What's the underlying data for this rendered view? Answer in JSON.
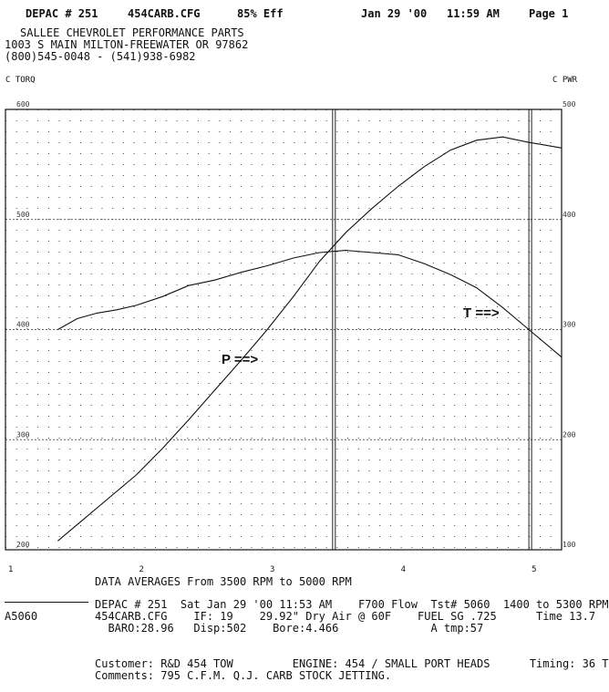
{
  "header": {
    "depac": "DEPAC # 251",
    "config": "454CARB.CFG",
    "eff": "85% Eff",
    "date": "Jan 29 '00",
    "time": "11:59 AM",
    "page": "Page 1"
  },
  "shop": {
    "name": "SALLEE CHEVROLET PERFORMANCE PARTS",
    "address": "1003 S MAIN MILTON-FREEWATER OR 97862",
    "phone": "(800)545-0048 - (541)938-6982"
  },
  "chart_data": {
    "type": "line",
    "left_axis_label": "C TORQ",
    "right_axis_label": "C PWR",
    "x_ticks": [
      "1",
      "2",
      "3",
      "4",
      "5"
    ],
    "x_range": [
      1,
      5.25
    ],
    "left_ticks": [
      "600",
      "500",
      "400",
      "300",
      "200"
    ],
    "left_range": [
      200,
      600
    ],
    "right_ticks": [
      "500",
      "400",
      "300",
      "200",
      "100"
    ],
    "right_range": [
      100,
      500
    ],
    "marker_lines": [
      3.5,
      5.0
    ],
    "grid": true,
    "series": [
      {
        "name": "T",
        "axis": "left",
        "x": [
          1.4,
          1.55,
          1.7,
          1.85,
          2.0,
          2.2,
          2.4,
          2.6,
          2.8,
          3.0,
          3.2,
          3.4,
          3.6,
          3.8,
          4.0,
          4.2,
          4.4,
          4.6,
          4.8,
          5.0,
          5.15,
          5.25
        ],
        "y": [
          400,
          410,
          415,
          418,
          422,
          430,
          440,
          445,
          452,
          458,
          465,
          470,
          472,
          470,
          468,
          460,
          450,
          438,
          420,
          400,
          385,
          375
        ]
      },
      {
        "name": "P",
        "axis": "right",
        "x": [
          1.4,
          1.6,
          1.8,
          2.0,
          2.2,
          2.4,
          2.6,
          2.8,
          3.0,
          3.2,
          3.4,
          3.6,
          3.8,
          4.0,
          4.2,
          4.4,
          4.6,
          4.8,
          5.0,
          5.1,
          5.25
        ],
        "y": [
          108,
          128,
          148,
          168,
          192,
          218,
          245,
          272,
          300,
          330,
          362,
          388,
          410,
          430,
          448,
          463,
          472,
          475,
          470,
          468,
          465
        ]
      }
    ],
    "annotations": [
      "P ==>",
      "T ==>"
    ]
  },
  "averages": {
    "title": "DATA AVERAGES From 3500 RPM to 5000 RPM"
  },
  "run": {
    "id": "A5060",
    "line1": "DEPAC # 251  Sat Jan 29 '00 11:53 AM    F700 Flow  Tst# 5060  1400 to 5300 RPM",
    "line2": "454CARB.CFG    IF: 19    29.92\" Dry Air @ 60F    FUEL SG .725      Time 13.7",
    "line3": "  BARO:28.96   Disp:502    Bore:4.466              A tmp:57",
    "customer": "Customer: R&D 454 TOW         ENGINE: 454 / SMALL PORT HEADS      Timing: 36 T",
    "comments": "Comments: 795 C.F.M. Q.J. CARB STOCK JETTING."
  }
}
